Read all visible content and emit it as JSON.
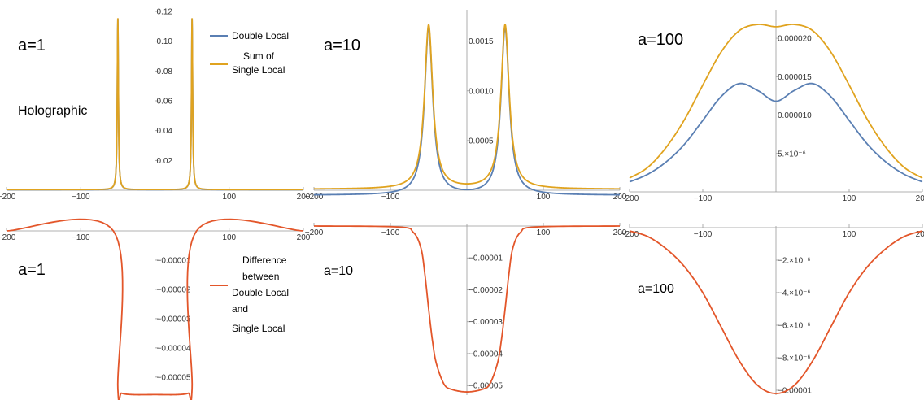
{
  "colors": {
    "double_local": "#5a7fb3",
    "single_sum": "#e0a31f",
    "difference": "#e3562a"
  },
  "legend": {
    "double_local": [
      "Double Local"
    ],
    "sum_single": [
      "Sum of",
      "Single Local"
    ],
    "difference": [
      "Difference",
      "between",
      "Double Local",
      "and",
      "Single Local"
    ]
  },
  "chart_data": [
    {
      "type": "line",
      "label": "a=1",
      "subtitle": "Holographic",
      "xlim": [
        -200,
        200
      ],
      "ylim": [
        0,
        0.12
      ],
      "xticks": [
        -200,
        -100,
        100,
        200
      ],
      "xtick_labels": [
        "−200",
        "−100",
        "100",
        "200"
      ],
      "yticks": [
        0.02,
        0.04,
        0.06,
        0.08,
        0.1,
        0.12
      ],
      "ytick_labels": [
        "0.02",
        "0.04",
        "0.06",
        "0.08",
        "0.10",
        "0.12"
      ],
      "series": [
        {
          "name": "Double Local",
          "peaks": [
            {
              "x": -50,
              "height": 0.115,
              "width": 0.9
            },
            {
              "x": 50,
              "height": 0.115,
              "width": 0.9
            }
          ],
          "baseline": 0.0003
        },
        {
          "name": "Sum of Single Local",
          "peaks": [
            {
              "x": -50,
              "height": 0.115,
              "width": 0.9
            },
            {
              "x": 50,
              "height": 0.115,
              "width": 0.9
            }
          ],
          "baseline": 0.0004
        }
      ]
    },
    {
      "type": "line",
      "label": "a=10",
      "xlim": [
        -200,
        200
      ],
      "ylim": [
        0,
        0.0018
      ],
      "xticks": [
        -200,
        -100,
        100,
        200
      ],
      "xtick_labels": [
        "−200",
        "−100",
        "100",
        "200"
      ],
      "yticks": [
        0.0005,
        0.001,
        0.0015
      ],
      "ytick_labels": [
        "0.0005",
        "0.0010",
        "0.0015"
      ],
      "series": [
        {
          "name": "Double Local",
          "peaks": [
            {
              "x": -50,
              "height": 0.00168,
              "width": 6.5
            },
            {
              "x": 50,
              "height": 0.00168,
              "width": 6.5
            }
          ],
          "baseline": -5e-05
        },
        {
          "name": "Sum of Single Local",
          "peaks": [
            {
              "x": -50,
              "height": 0.00165,
              "width": 6.5
            },
            {
              "x": 50,
              "height": 0.00165,
              "width": 6.5
            }
          ],
          "baseline": 1e-05
        }
      ]
    },
    {
      "type": "line",
      "label": "a=100",
      "xlim": [
        -200,
        200
      ],
      "ylim": [
        0,
        2.35e-05
      ],
      "xticks": [
        -200,
        -100,
        100,
        200
      ],
      "xtick_labels": [
        "−200",
        "−100",
        "100",
        "200"
      ],
      "yticks": [
        5e-06,
        1e-05,
        1.5e-05,
        2e-05
      ],
      "ytick_labels": [
        "5.×10⁻⁶",
        "0.000010",
        "0.000015",
        "0.000020"
      ],
      "series": [
        {
          "name": "Double Local",
          "x": [
            -200,
            -175,
            -150,
            -125,
            -100,
            -75,
            -50,
            -25,
            0,
            25,
            50,
            75,
            100,
            125,
            150,
            175,
            200
          ],
          "y": [
            1.3e-06,
            2.3e-06,
            3.9e-06,
            6.2e-06,
            9.3e-06,
            1.24e-05,
            1.41e-05,
            1.32e-05,
            1.18e-05,
            1.32e-05,
            1.41e-05,
            1.24e-05,
            9.3e-06,
            6.2e-06,
            3.9e-06,
            2.3e-06,
            1.3e-06
          ]
        },
        {
          "name": "Sum of Single Local",
          "x": [
            -200,
            -175,
            -150,
            -125,
            -100,
            -75,
            -50,
            -25,
            0,
            25,
            50,
            75,
            100,
            125,
            150,
            175,
            200
          ],
          "y": [
            1.8e-06,
            3.2e-06,
            5.8e-06,
            9.4e-06,
            1.39e-05,
            1.82e-05,
            2.1e-05,
            2.18e-05,
            2.15e-05,
            2.18e-05,
            2.1e-05,
            1.82e-05,
            1.39e-05,
            9.4e-06,
            5.8e-06,
            3.2e-06,
            1.8e-06
          ]
        }
      ]
    },
    {
      "type": "line",
      "label": "a=1",
      "xlim": [
        -200,
        200
      ],
      "ylim": [
        -5.7e-05,
        0
      ],
      "xticks": [
        -200,
        -100,
        100,
        200
      ],
      "xtick_labels": [
        "−200",
        "−100",
        "100",
        "200"
      ],
      "yticks": [
        -1e-05,
        -2e-05,
        -3e-05,
        -4e-05,
        -5e-05
      ],
      "ytick_labels": [
        "−0.00001",
        "−0.00002",
        "−0.00003",
        "−0.00004",
        "−0.00005"
      ],
      "series": [
        {
          "name": "Difference between Double Local and Single Local",
          "x": [
            -200,
            -56,
            -50,
            -45,
            -30,
            0,
            30,
            45,
            50,
            56,
            200
          ],
          "y": [
            0,
            0,
            -5.4e-05,
            -5.55e-05,
            -5.6e-05,
            -5.6e-05,
            -5.6e-05,
            -5.55e-05,
            -5.4e-05,
            0,
            0
          ]
        }
      ]
    },
    {
      "type": "line",
      "label": "a=10",
      "xlim": [
        -200,
        200
      ],
      "ylim": [
        -5.3e-05,
        0
      ],
      "xticks": [
        -200,
        -100,
        100,
        200
      ],
      "xtick_labels": [
        "−200",
        "−100",
        "100",
        "200"
      ],
      "yticks": [
        -1e-05,
        -2e-05,
        -3e-05,
        -4e-05,
        -5e-05
      ],
      "ytick_labels": [
        "−0.00001",
        "−0.00002",
        "−0.00003",
        "−0.00004",
        "−0.00005"
      ],
      "series": [
        {
          "name": "Difference between Double Local and Single Local",
          "x": [
            -200,
            -90,
            -70,
            -60,
            -55,
            -50,
            -45,
            -40,
            -30,
            -20,
            0,
            20,
            30,
            40,
            45,
            50,
            55,
            60,
            70,
            90,
            200
          ],
          "y": [
            0,
            -3e-07,
            -2e-06,
            -7e-06,
            -1.5e-05,
            -2.6e-05,
            -3.6e-05,
            -4.3e-05,
            -4.95e-05,
            -5.12e-05,
            -5.2e-05,
            -5.12e-05,
            -4.95e-05,
            -4.3e-05,
            -3.6e-05,
            -2.6e-05,
            -1.5e-05,
            -7e-06,
            -2e-06,
            -3e-07,
            0
          ]
        }
      ]
    },
    {
      "type": "line",
      "label": "a=100",
      "xlim": [
        -200,
        200
      ],
      "ylim": [
        -1.03e-05,
        0
      ],
      "xticks": [
        -200,
        -100,
        100,
        200
      ],
      "xtick_labels": [
        "−200",
        "−100",
        "100",
        "200"
      ],
      "yticks": [
        -2e-06,
        -4e-06,
        -6e-06,
        -8e-06,
        -1e-05
      ],
      "ytick_labels": [
        "−2.×10⁻⁶",
        "−4.×10⁻⁶",
        "−6.×10⁻⁶",
        "−8.×10⁻⁶",
        "−0.00001"
      ],
      "series": [
        {
          "name": "Difference between Double Local and Single Local",
          "x": [
            -200,
            -175,
            -150,
            -125,
            -100,
            -75,
            -50,
            -25,
            0,
            25,
            50,
            75,
            100,
            125,
            150,
            175,
            200
          ],
          "y": [
            -2e-07,
            -5.5e-07,
            -1.3e-06,
            -2.4e-06,
            -4e-06,
            -6.1e-06,
            -8.2e-06,
            -9.7e-06,
            -1.02e-05,
            -9.7e-06,
            -8.2e-06,
            -6.1e-06,
            -4e-06,
            -2.4e-06,
            -1.3e-06,
            -5.5e-07,
            -2e-07
          ]
        }
      ]
    }
  ]
}
